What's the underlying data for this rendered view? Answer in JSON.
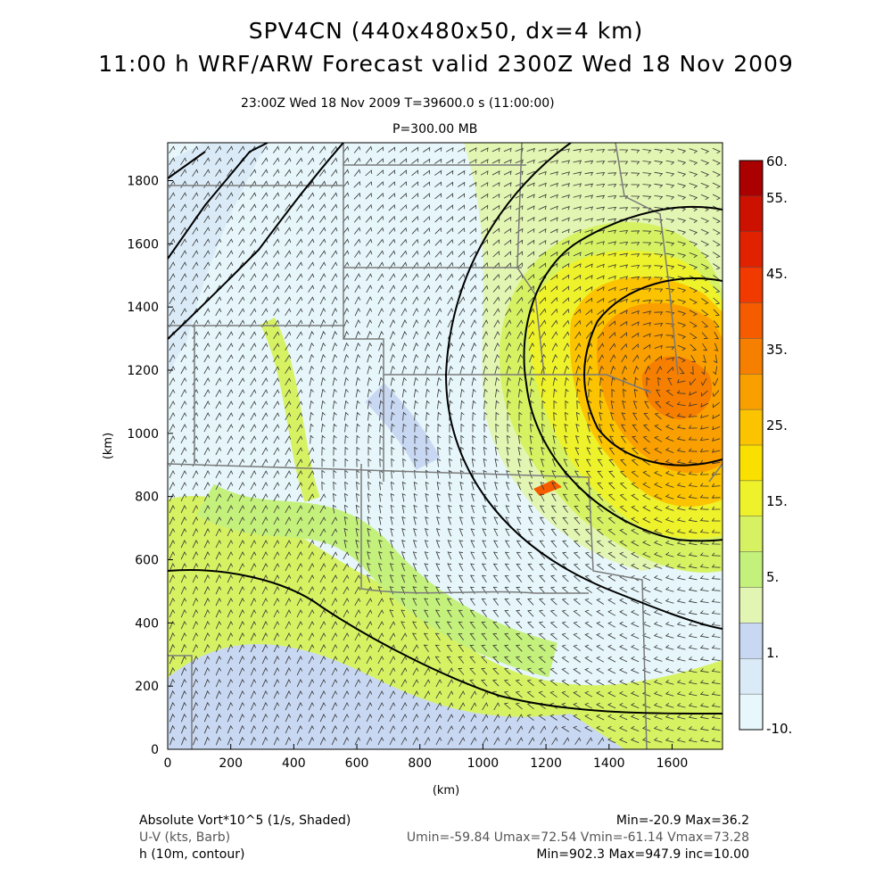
{
  "titles": {
    "line1": "SPV4CN (440x480x50, dx=4 km)",
    "line2": "11:00 h WRF/ARW Forecast valid 2300Z Wed 18 Nov 2009",
    "time_line": "23:00Z Wed 18 Nov 2009     T=39600.0 s (11:00:00)",
    "level": "P=300.00 MB"
  },
  "axes": {
    "xlabel": "(km)",
    "ylabel": "(km)",
    "x_ticks": [
      "0",
      "200",
      "400",
      "600",
      "800",
      "1000",
      "1200",
      "1400",
      "1600"
    ],
    "y_ticks": [
      "0",
      "200",
      "400",
      "600",
      "800",
      "1000",
      "1200",
      "1400",
      "1600",
      "1800"
    ],
    "x_range_km": [
      0,
      1760
    ],
    "y_range_km": [
      0,
      1920
    ]
  },
  "colorbar": {
    "labels": [
      "60.",
      "55.",
      "45.",
      "35.",
      "25.",
      "15.",
      "5.",
      "1.",
      "-10."
    ],
    "colors": [
      "#aa0000",
      "#cc1100",
      "#e02200",
      "#f03a00",
      "#f55c00",
      "#f77f00",
      "#fa9f00",
      "#fcc300",
      "#f9e000",
      "#eef22a",
      "#d6f263",
      "#c4f07c",
      "#e2f5b2",
      "#c9d8f2",
      "#daebf7",
      "#e8f7fb"
    ]
  },
  "footer": {
    "field1": "Absolute Vort*10^5 (1/s, Shaded)",
    "field1_stats": "Min=-20.9 Max=36.2",
    "field2": "U-V (kts, Barb)",
    "field2_stats": "Umin=-59.84 Umax=72.54 Vmin=-61.14 Vmax=73.28",
    "field3": "h (10m, contour)",
    "field3_stats": "Min=902.3 Max=947.9 inc=10.00"
  }
}
